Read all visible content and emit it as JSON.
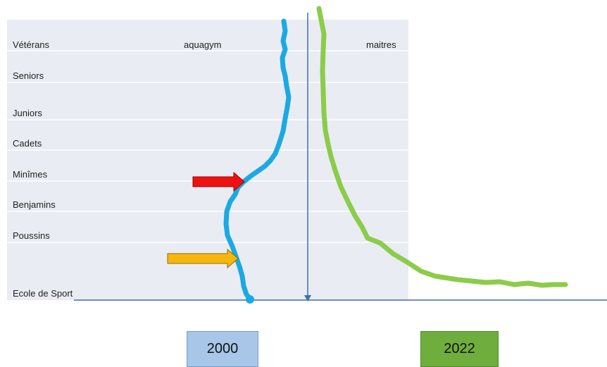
{
  "categories": [
    "Vétérans",
    "Seniors",
    "Juniors",
    "Cadets",
    "Minîmes",
    "Benjamins",
    "Poussins",
    "Ecole de Sport"
  ],
  "annotations": {
    "left": "aquagym",
    "right": "maitres"
  },
  "years": {
    "left": "2000",
    "right": "2022"
  },
  "colors": {
    "panel": "#e9ecf3",
    "row_line": "#ffffff",
    "axis": "#3f6fa8",
    "curve_2000": "#1ba9e2",
    "curve_2022": "#8ccc4a",
    "arrow_red": "#ee1111",
    "arrow_orange": "#f6b70a",
    "box_2000": "#a8c6e7",
    "box_2022": "#6fae3d"
  }
}
